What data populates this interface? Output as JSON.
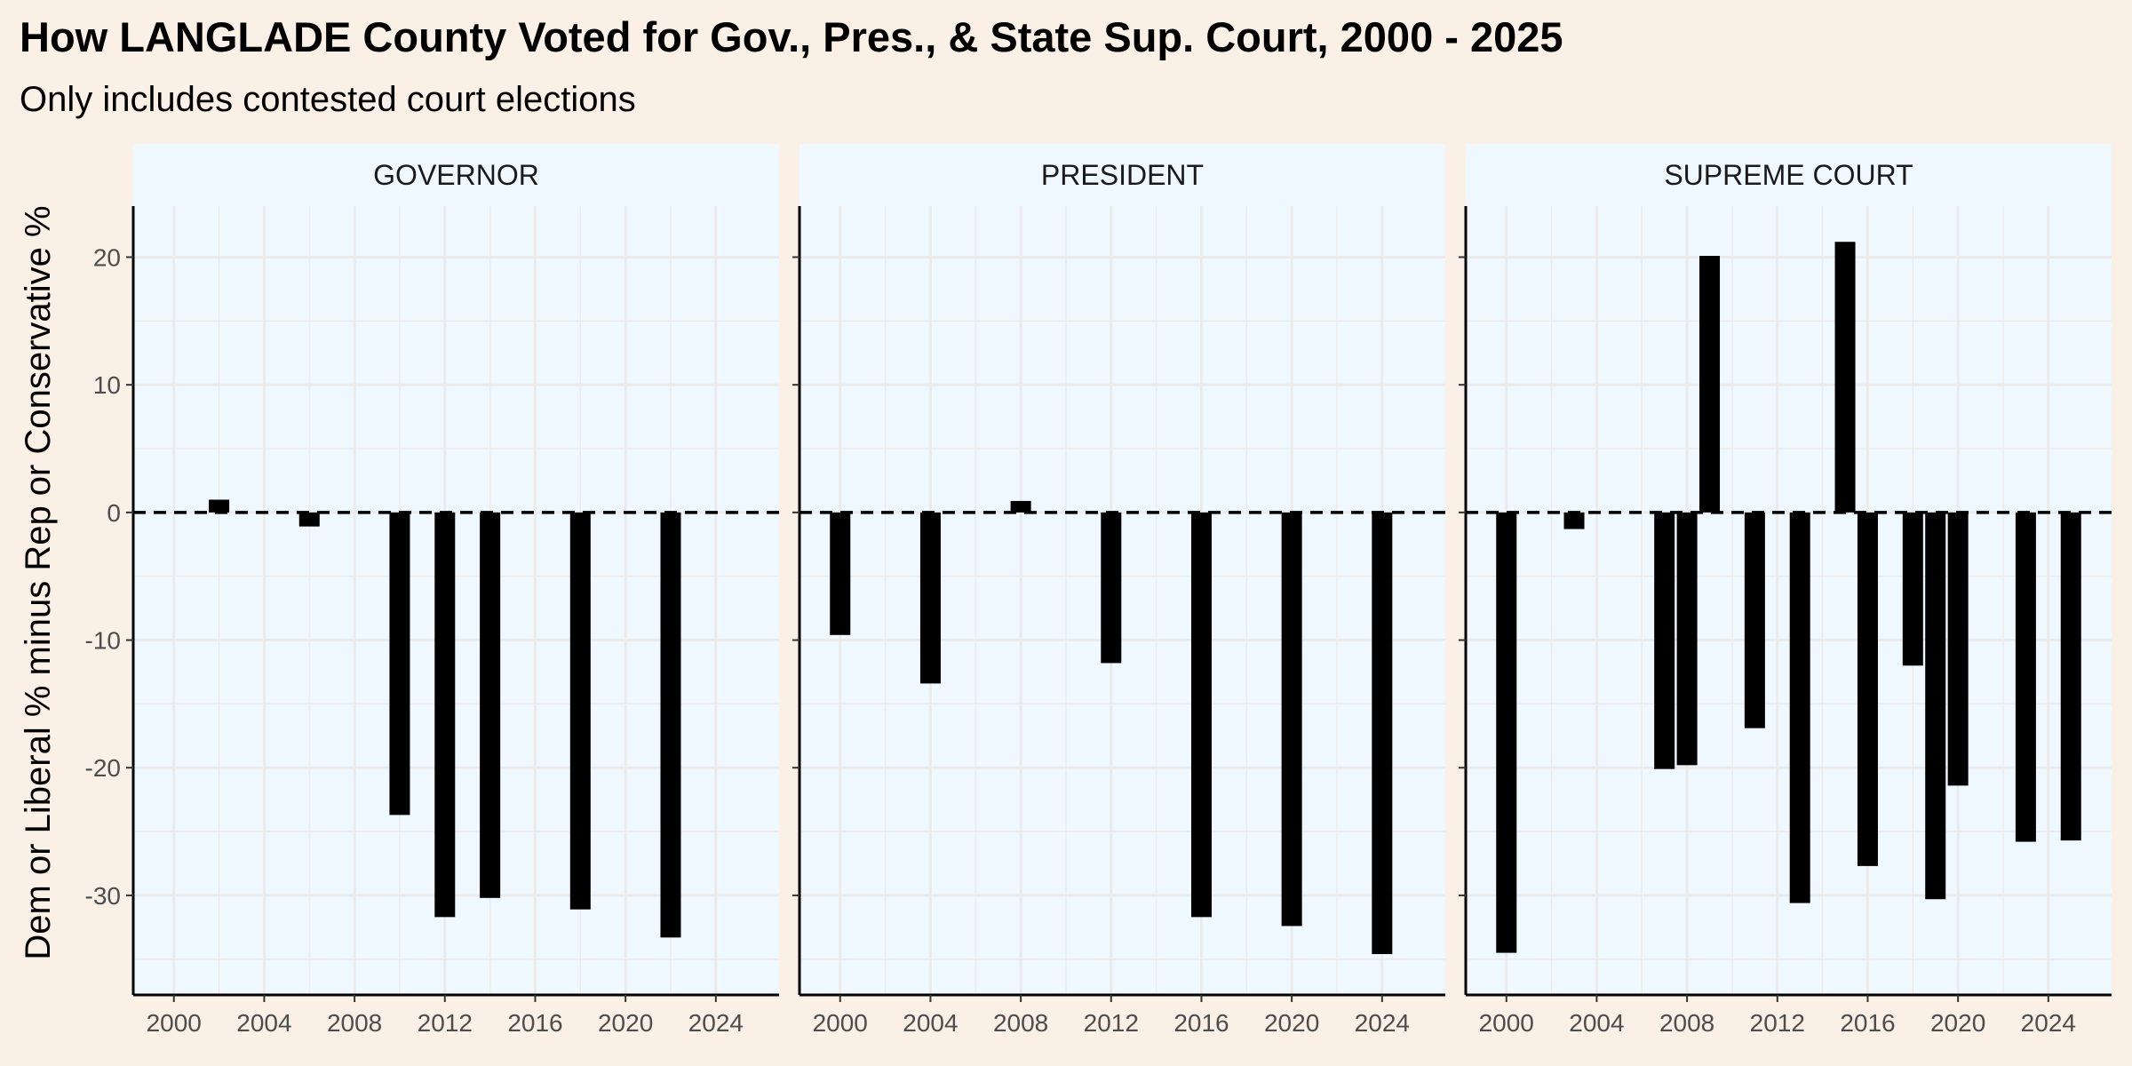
{
  "chart_data": {
    "type": "bar",
    "title": "How LANGLADE County Voted for Gov., Pres., & State Sup. Court, 2000 - 2025",
    "subtitle": "Only includes contested court elections",
    "ylabel": "Dem or Liberal % minus Rep or Conservative %",
    "xlabel": "",
    "xlim": [
      1998.2,
      2026.8
    ],
    "ylim": [
      -37.8,
      24
    ],
    "x_ticks": [
      2000,
      2004,
      2008,
      2012,
      2016,
      2020,
      2024
    ],
    "y_ticks": [
      20,
      10,
      0,
      -10,
      -20,
      -30
    ],
    "y_tick_labels": [
      "20",
      "10",
      "0",
      "-10",
      "-20",
      "-30"
    ],
    "reference_line": 0,
    "grid": true,
    "colors": {
      "background": "#faf0e6",
      "panel": "#f0f8ff",
      "grid": "#ebebeb",
      "bar": "#000000"
    },
    "panels": [
      {
        "name": "GOVERNOR",
        "points": [
          {
            "x": 2002,
            "y": 1.0
          },
          {
            "x": 2006,
            "y": -1.1
          },
          {
            "x": 2010,
            "y": -23.7
          },
          {
            "x": 2012,
            "y": -31.7
          },
          {
            "x": 2014,
            "y": -30.2
          },
          {
            "x": 2018,
            "y": -31.1
          },
          {
            "x": 2022,
            "y": -33.3
          }
        ]
      },
      {
        "name": "PRESIDENT",
        "points": [
          {
            "x": 2000,
            "y": -9.6
          },
          {
            "x": 2004,
            "y": -13.4
          },
          {
            "x": 2008,
            "y": 0.9
          },
          {
            "x": 2012,
            "y": -11.8
          },
          {
            "x": 2016,
            "y": -31.7
          },
          {
            "x": 2020,
            "y": -32.4
          },
          {
            "x": 2024,
            "y": -34.6
          }
        ]
      },
      {
        "name": "SUPREME COURT",
        "points": [
          {
            "x": 2000,
            "y": -34.5
          },
          {
            "x": 2003,
            "y": -1.3
          },
          {
            "x": 2007,
            "y": -20.1
          },
          {
            "x": 2008,
            "y": -19.8
          },
          {
            "x": 2009,
            "y": 20.1
          },
          {
            "x": 2011,
            "y": -16.9
          },
          {
            "x": 2013,
            "y": -30.6
          },
          {
            "x": 2015,
            "y": 21.2
          },
          {
            "x": 2016,
            "y": -27.7
          },
          {
            "x": 2018,
            "y": -12.0
          },
          {
            "x": 2019,
            "y": -30.3
          },
          {
            "x": 2020,
            "y": -21.4
          },
          {
            "x": 2023,
            "y": -25.8
          },
          {
            "x": 2025,
            "y": -25.7
          }
        ]
      }
    ]
  }
}
